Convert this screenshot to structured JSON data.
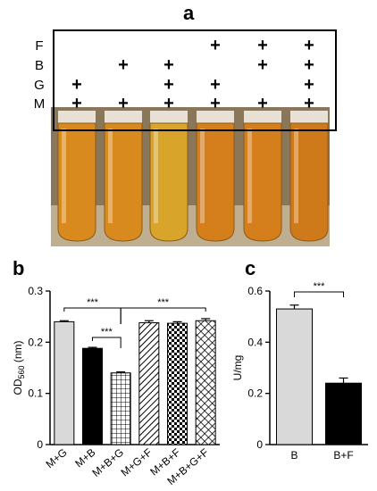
{
  "panel_a": {
    "label": "a",
    "rows": [
      {
        "name": "F",
        "marks": [
          false,
          false,
          false,
          true,
          true,
          true
        ]
      },
      {
        "name": "B",
        "marks": [
          false,
          true,
          true,
          false,
          true,
          true
        ]
      },
      {
        "name": "G",
        "marks": [
          true,
          false,
          true,
          true,
          false,
          true
        ]
      },
      {
        "name": "M",
        "marks": [
          true,
          true,
          true,
          true,
          true,
          true
        ]
      }
    ],
    "mark_symbol": "+",
    "tube_colors": [
      "#d98a1e",
      "#d98a1e",
      "#d8a52a",
      "#d47f1c",
      "#d47f1c",
      "#cf7a1a"
    ]
  },
  "panel_b": {
    "label": "b"
  },
  "panel_c": {
    "label": "c"
  },
  "chart_data": [
    {
      "type": "bar",
      "panel": "b",
      "categories": [
        "M+G",
        "M+B",
        "M+B+G",
        "M+G+F",
        "M+B+F",
        "M+B+G+F"
      ],
      "values": [
        0.24,
        0.188,
        0.14,
        0.238,
        0.237,
        0.242
      ],
      "errors": [
        0.002,
        0.002,
        0.002,
        0.004,
        0.003,
        0.004
      ],
      "fills": [
        "solid-lightgray",
        "solid-black",
        "grid",
        "diagonal",
        "checker",
        "crosshatch"
      ],
      "ylabel_main": "OD",
      "ylabel_sub": "560",
      "ylabel_unit": " (nm)",
      "ylim": [
        0,
        0.3
      ],
      "yticks": [
        "0",
        "0.1",
        "0.2",
        "0.3"
      ],
      "annotations": [
        {
          "from": 0,
          "to": 2,
          "text": "***"
        },
        {
          "from": 1,
          "to": 2,
          "text": "***"
        },
        {
          "from": 2,
          "to": 5,
          "text": "***"
        }
      ]
    },
    {
      "type": "bar",
      "panel": "c",
      "categories": [
        "B",
        "B+F"
      ],
      "values": [
        0.53,
        0.24
      ],
      "errors": [
        0.015,
        0.02
      ],
      "fills": [
        "solid-lightgray",
        "solid-black"
      ],
      "ylabel": "U/mg",
      "ylim": [
        0,
        0.6
      ],
      "yticks": [
        "0",
        "0.2",
        "0.4",
        "0.6"
      ],
      "annotations": [
        {
          "from": 0,
          "to": 1,
          "text": "***"
        }
      ]
    }
  ]
}
